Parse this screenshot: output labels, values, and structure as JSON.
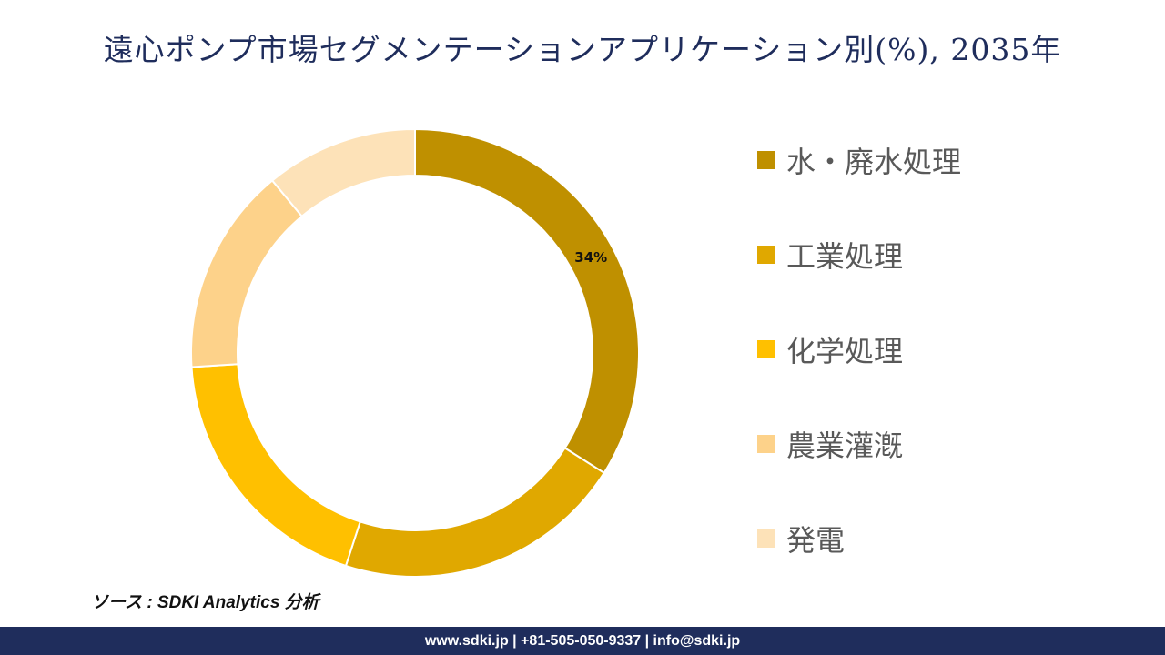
{
  "chart_data": {
    "type": "pie",
    "title": "遠心ポンプ市場セグメンテーションアプリケーション別(%), 2035年",
    "categories": [
      "水・廃水処理",
      "工業処理",
      "化学処理",
      "農業灌漑",
      "発電"
    ],
    "values": [
      34,
      21,
      19,
      15,
      11
    ],
    "data_labels": [
      "34%",
      "",
      "",
      "",
      ""
    ],
    "colors": [
      "#bf9000",
      "#e0a800",
      "#ffc000",
      "#fdd28a",
      "#fde2b8"
    ],
    "legend_position": "right"
  },
  "source": "ソース : SDKI Analytics 分析",
  "footer": "www.sdki.jp | +81-505-050-9337 | info@sdki.jp"
}
